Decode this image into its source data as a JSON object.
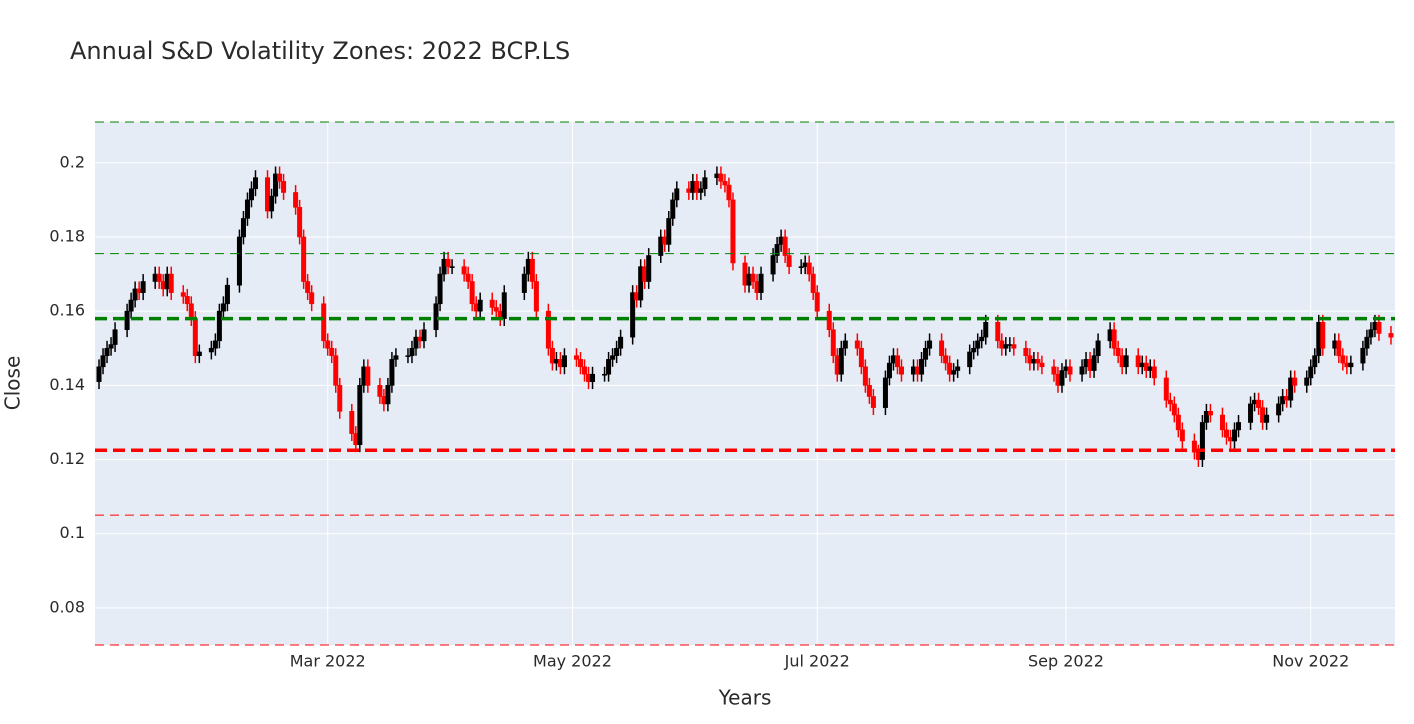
{
  "chart_data": {
    "type": "candlestick",
    "title": "Annual S&D Volatility Zones: 2022 BCP.LS",
    "x_label": "Years",
    "y_label": "Close",
    "increasing_color": "#000000",
    "decreasing_color": "#ff0000",
    "grid": true,
    "xlim": [
      "2022-01-02",
      "2022-11-22"
    ],
    "xticks": [
      {
        "value": "2022-03-01",
        "label": "Mar 2022"
      },
      {
        "value": "2022-05-01",
        "label": "May 2022"
      },
      {
        "value": "2022-07-01",
        "label": "Jul 2022"
      },
      {
        "value": "2022-09-01",
        "label": "Sep 2022"
      },
      {
        "value": "2022-11-01",
        "label": "Nov 2022"
      }
    ],
    "ylim": [
      0.07,
      0.211
    ],
    "yticks": [
      0.08,
      0.1,
      0.12,
      0.14,
      0.16,
      0.18,
      0.2
    ],
    "levels": [
      {
        "value": 0.211,
        "color": "#008000",
        "width": 1
      },
      {
        "value": 0.1755,
        "color": "#008000",
        "width": 1
      },
      {
        "value": 0.158,
        "color": "#008000",
        "width": 3.5
      },
      {
        "value": 0.1225,
        "color": "#ff0000",
        "width": 3.5
      },
      {
        "value": 0.105,
        "color": "#ff0000",
        "width": 1
      },
      {
        "value": 0.07,
        "color": "#ff0000",
        "width": 1
      }
    ],
    "x": [
      "2022-01-03",
      "2022-01-04",
      "2022-01-05",
      "2022-01-06",
      "2022-01-07",
      "2022-01-10",
      "2022-01-11",
      "2022-01-12",
      "2022-01-13",
      "2022-01-14",
      "2022-01-17",
      "2022-01-18",
      "2022-01-19",
      "2022-01-20",
      "2022-01-21",
      "2022-01-24",
      "2022-01-25",
      "2022-01-26",
      "2022-01-27",
      "2022-01-28",
      "2022-01-31",
      "2022-02-01",
      "2022-02-02",
      "2022-02-03",
      "2022-02-04",
      "2022-02-07",
      "2022-02-08",
      "2022-02-09",
      "2022-02-10",
      "2022-02-11",
      "2022-02-14",
      "2022-02-15",
      "2022-02-16",
      "2022-02-17",
      "2022-02-18",
      "2022-02-21",
      "2022-02-22",
      "2022-02-23",
      "2022-02-24",
      "2022-02-25",
      "2022-02-28",
      "2022-03-01",
      "2022-03-02",
      "2022-03-03",
      "2022-03-04",
      "2022-03-07",
      "2022-03-08",
      "2022-03-09",
      "2022-03-10",
      "2022-03-11",
      "2022-03-14",
      "2022-03-15",
      "2022-03-16",
      "2022-03-17",
      "2022-03-18",
      "2022-03-21",
      "2022-03-22",
      "2022-03-23",
      "2022-03-24",
      "2022-03-25",
      "2022-03-28",
      "2022-03-29",
      "2022-03-30",
      "2022-03-31",
      "2022-04-01",
      "2022-04-04",
      "2022-04-05",
      "2022-04-06",
      "2022-04-07",
      "2022-04-08",
      "2022-04-11",
      "2022-04-12",
      "2022-04-13",
      "2022-04-14",
      "2022-04-19",
      "2022-04-20",
      "2022-04-21",
      "2022-04-22",
      "2022-04-25",
      "2022-04-26",
      "2022-04-27",
      "2022-04-28",
      "2022-04-29",
      "2022-05-02",
      "2022-05-03",
      "2022-05-04",
      "2022-05-05",
      "2022-05-06",
      "2022-05-09",
      "2022-05-10",
      "2022-05-11",
      "2022-05-12",
      "2022-05-13",
      "2022-05-16",
      "2022-05-17",
      "2022-05-18",
      "2022-05-19",
      "2022-05-20",
      "2022-05-23",
      "2022-05-24",
      "2022-05-25",
      "2022-05-26",
      "2022-05-27",
      "2022-05-30",
      "2022-05-31",
      "2022-06-01",
      "2022-06-02",
      "2022-06-03",
      "2022-06-06",
      "2022-06-07",
      "2022-06-08",
      "2022-06-09",
      "2022-06-10",
      "2022-06-13",
      "2022-06-14",
      "2022-06-15",
      "2022-06-16",
      "2022-06-17",
      "2022-06-20",
      "2022-06-21",
      "2022-06-22",
      "2022-06-23",
      "2022-06-24",
      "2022-06-27",
      "2022-06-28",
      "2022-06-29",
      "2022-06-30",
      "2022-07-01",
      "2022-07-04",
      "2022-07-05",
      "2022-07-06",
      "2022-07-07",
      "2022-07-08",
      "2022-07-11",
      "2022-07-12",
      "2022-07-13",
      "2022-07-14",
      "2022-07-15",
      "2022-07-18",
      "2022-07-19",
      "2022-07-20",
      "2022-07-21",
      "2022-07-22",
      "2022-07-25",
      "2022-07-26",
      "2022-07-27",
      "2022-07-28",
      "2022-07-29",
      "2022-08-01",
      "2022-08-02",
      "2022-08-03",
      "2022-08-04",
      "2022-08-05",
      "2022-08-08",
      "2022-08-09",
      "2022-08-10",
      "2022-08-11",
      "2022-08-12",
      "2022-08-15",
      "2022-08-16",
      "2022-08-17",
      "2022-08-18",
      "2022-08-19",
      "2022-08-22",
      "2022-08-23",
      "2022-08-24",
      "2022-08-25",
      "2022-08-26",
      "2022-08-29",
      "2022-08-30",
      "2022-08-31",
      "2022-09-01",
      "2022-09-02",
      "2022-09-05",
      "2022-09-06",
      "2022-09-07",
      "2022-09-08",
      "2022-09-09",
      "2022-09-12",
      "2022-09-13",
      "2022-09-14",
      "2022-09-15",
      "2022-09-16",
      "2022-09-19",
      "2022-09-20",
      "2022-09-21",
      "2022-09-22",
      "2022-09-23",
      "2022-09-26",
      "2022-09-27",
      "2022-09-28",
      "2022-09-29",
      "2022-09-30",
      "2022-10-03",
      "2022-10-04",
      "2022-10-05",
      "2022-10-06",
      "2022-10-07",
      "2022-10-10",
      "2022-10-11",
      "2022-10-12",
      "2022-10-13",
      "2022-10-14",
      "2022-10-17",
      "2022-10-18",
      "2022-10-19",
      "2022-10-20",
      "2022-10-21",
      "2022-10-24",
      "2022-10-25",
      "2022-10-26",
      "2022-10-27",
      "2022-10-28",
      "2022-10-31",
      "2022-11-01",
      "2022-11-02",
      "2022-11-03",
      "2022-11-04",
      "2022-11-07",
      "2022-11-08",
      "2022-11-09",
      "2022-11-10",
      "2022-11-11",
      "2022-11-14",
      "2022-11-15",
      "2022-11-16",
      "2022-11-17",
      "2022-11-18",
      "2022-11-21"
    ],
    "open": [
      0.141,
      0.145,
      0.148,
      0.15,
      0.151,
      0.155,
      0.16,
      0.163,
      0.166,
      0.165,
      0.168,
      0.17,
      0.168,
      0.166,
      0.17,
      0.165,
      0.164,
      0.162,
      0.158,
      0.148,
      0.149,
      0.15,
      0.152,
      0.16,
      0.162,
      0.167,
      0.18,
      0.185,
      0.19,
      0.193,
      0.196,
      0.187,
      0.191,
      0.197,
      0.195,
      0.192,
      0.188,
      0.18,
      0.168,
      0.165,
      0.162,
      0.152,
      0.15,
      0.148,
      0.14,
      0.133,
      0.127,
      0.124,
      0.14,
      0.145,
      0.14,
      0.137,
      0.135,
      0.14,
      0.147,
      0.148,
      0.148,
      0.15,
      0.153,
      0.152,
      0.155,
      0.162,
      0.17,
      0.174,
      0.172,
      0.172,
      0.17,
      0.168,
      0.162,
      0.16,
      0.163,
      0.161,
      0.16,
      0.158,
      0.165,
      0.17,
      0.174,
      0.168,
      0.16,
      0.15,
      0.146,
      0.147,
      0.145,
      0.148,
      0.147,
      0.145,
      0.143,
      0.141,
      0.143,
      0.143,
      0.147,
      0.148,
      0.15,
      0.153,
      0.165,
      0.163,
      0.172,
      0.168,
      0.175,
      0.18,
      0.178,
      0.185,
      0.19,
      0.193,
      0.192,
      0.195,
      0.192,
      0.193,
      0.196,
      0.197,
      0.195,
      0.194,
      0.19,
      0.173,
      0.167,
      0.17,
      0.168,
      0.165,
      0.17,
      0.175,
      0.178,
      0.18,
      0.175,
      0.172,
      0.172,
      0.173,
      0.17,
      0.165,
      0.16,
      0.155,
      0.148,
      0.143,
      0.15,
      0.152,
      0.15,
      0.145,
      0.14,
      0.137,
      0.134,
      0.142,
      0.146,
      0.148,
      0.145,
      0.143,
      0.145,
      0.143,
      0.147,
      0.15,
      0.152,
      0.148,
      0.146,
      0.143,
      0.144,
      0.145,
      0.149,
      0.15,
      0.152,
      0.153,
      0.157,
      0.152,
      0.15,
      0.151,
      0.151,
      0.15,
      0.148,
      0.146,
      0.147,
      0.146,
      0.145,
      0.143,
      0.14,
      0.144,
      0.145,
      0.143,
      0.145,
      0.147,
      0.144,
      0.148,
      0.152,
      0.155,
      0.15,
      0.148,
      0.145,
      0.148,
      0.145,
      0.146,
      0.144,
      0.145,
      0.142,
      0.136,
      0.135,
      0.132,
      0.128,
      0.125,
      0.122,
      0.12,
      0.13,
      0.133,
      0.132,
      0.128,
      0.126,
      0.125,
      0.128,
      0.13,
      0.135,
      0.136,
      0.134,
      0.13,
      0.132,
      0.135,
      0.137,
      0.136,
      0.142,
      0.14,
      0.142,
      0.145,
      0.148,
      0.157,
      0.15,
      0.152,
      0.148,
      0.146,
      0.145,
      0.146,
      0.15,
      0.153,
      0.155,
      0.157,
      0.154
    ],
    "high": [
      0.147,
      0.15,
      0.152,
      0.153,
      0.157,
      0.162,
      0.165,
      0.168,
      0.168,
      0.17,
      0.172,
      0.172,
      0.17,
      0.172,
      0.172,
      0.167,
      0.166,
      0.164,
      0.16,
      0.151,
      0.152,
      0.154,
      0.162,
      0.164,
      0.169,
      0.182,
      0.187,
      0.192,
      0.195,
      0.198,
      0.198,
      0.193,
      0.199,
      0.199,
      0.197,
      0.194,
      0.19,
      0.182,
      0.17,
      0.167,
      0.164,
      0.154,
      0.152,
      0.15,
      0.142,
      0.135,
      0.129,
      0.142,
      0.147,
      0.147,
      0.142,
      0.139,
      0.142,
      0.149,
      0.15,
      0.15,
      0.152,
      0.155,
      0.155,
      0.157,
      0.164,
      0.172,
      0.176,
      0.176,
      0.174,
      0.174,
      0.172,
      0.17,
      0.164,
      0.165,
      0.165,
      0.163,
      0.162,
      0.167,
      0.172,
      0.176,
      0.176,
      0.17,
      0.162,
      0.152,
      0.149,
      0.149,
      0.15,
      0.15,
      0.149,
      0.147,
      0.145,
      0.145,
      0.145,
      0.149,
      0.15,
      0.152,
      0.155,
      0.167,
      0.167,
      0.174,
      0.174,
      0.177,
      0.182,
      0.182,
      0.187,
      0.192,
      0.195,
      0.195,
      0.197,
      0.197,
      0.195,
      0.198,
      0.199,
      0.199,
      0.197,
      0.196,
      0.192,
      0.175,
      0.172,
      0.172,
      0.17,
      0.172,
      0.177,
      0.18,
      0.182,
      0.182,
      0.177,
      0.174,
      0.175,
      0.175,
      0.172,
      0.167,
      0.162,
      0.157,
      0.15,
      0.152,
      0.154,
      0.154,
      0.152,
      0.147,
      0.142,
      0.139,
      0.144,
      0.148,
      0.15,
      0.15,
      0.147,
      0.147,
      0.147,
      0.149,
      0.152,
      0.154,
      0.154,
      0.15,
      0.148,
      0.146,
      0.147,
      0.151,
      0.152,
      0.154,
      0.155,
      0.159,
      0.159,
      0.154,
      0.153,
      0.153,
      0.153,
      0.152,
      0.15,
      0.149,
      0.149,
      0.148,
      0.147,
      0.145,
      0.146,
      0.147,
      0.147,
      0.147,
      0.149,
      0.149,
      0.15,
      0.154,
      0.157,
      0.157,
      0.152,
      0.15,
      0.15,
      0.15,
      0.148,
      0.148,
      0.147,
      0.147,
      0.144,
      0.138,
      0.137,
      0.134,
      0.13,
      0.127,
      0.124,
      0.132,
      0.135,
      0.135,
      0.134,
      0.13,
      0.128,
      0.13,
      0.132,
      0.137,
      0.138,
      0.138,
      0.136,
      0.134,
      0.137,
      0.139,
      0.139,
      0.144,
      0.144,
      0.144,
      0.147,
      0.15,
      0.159,
      0.159,
      0.154,
      0.154,
      0.15,
      0.148,
      0.148,
      0.152,
      0.155,
      0.157,
      0.159,
      0.159,
      0.156
    ],
    "low": [
      0.139,
      0.143,
      0.146,
      0.148,
      0.149,
      0.153,
      0.158,
      0.161,
      0.163,
      0.163,
      0.166,
      0.166,
      0.164,
      0.164,
      0.163,
      0.162,
      0.16,
      0.156,
      0.146,
      0.146,
      0.147,
      0.148,
      0.15,
      0.158,
      0.16,
      0.165,
      0.178,
      0.183,
      0.188,
      0.191,
      0.185,
      0.185,
      0.189,
      0.193,
      0.19,
      0.186,
      0.178,
      0.166,
      0.163,
      0.16,
      0.15,
      0.148,
      0.146,
      0.138,
      0.131,
      0.125,
      0.122,
      0.122,
      0.138,
      0.138,
      0.135,
      0.133,
      0.133,
      0.138,
      0.145,
      0.146,
      0.146,
      0.148,
      0.15,
      0.15,
      0.153,
      0.16,
      0.168,
      0.17,
      0.17,
      0.168,
      0.166,
      0.16,
      0.158,
      0.158,
      0.159,
      0.158,
      0.156,
      0.156,
      0.163,
      0.168,
      0.166,
      0.158,
      0.148,
      0.144,
      0.144,
      0.143,
      0.143,
      0.145,
      0.143,
      0.141,
      0.139,
      0.139,
      0.141,
      0.141,
      0.145,
      0.146,
      0.148,
      0.151,
      0.161,
      0.161,
      0.166,
      0.166,
      0.173,
      0.176,
      0.176,
      0.183,
      0.188,
      0.19,
      0.19,
      0.19,
      0.19,
      0.191,
      0.194,
      0.193,
      0.192,
      0.188,
      0.171,
      0.165,
      0.165,
      0.166,
      0.163,
      0.163,
      0.168,
      0.173,
      0.176,
      0.173,
      0.17,
      0.17,
      0.17,
      0.168,
      0.163,
      0.158,
      0.153,
      0.146,
      0.141,
      0.141,
      0.148,
      0.148,
      0.143,
      0.138,
      0.135,
      0.132,
      0.132,
      0.14,
      0.144,
      0.143,
      0.141,
      0.141,
      0.141,
      0.141,
      0.145,
      0.148,
      0.146,
      0.144,
      0.141,
      0.141,
      0.142,
      0.143,
      0.147,
      0.148,
      0.15,
      0.151,
      0.15,
      0.148,
      0.148,
      0.149,
      0.148,
      0.146,
      0.144,
      0.144,
      0.144,
      0.143,
      0.141,
      0.138,
      0.138,
      0.142,
      0.141,
      0.141,
      0.143,
      0.142,
      0.142,
      0.146,
      0.15,
      0.148,
      0.146,
      0.143,
      0.143,
      0.143,
      0.143,
      0.142,
      0.142,
      0.14,
      0.134,
      0.133,
      0.13,
      0.126,
      0.123,
      0.12,
      0.118,
      0.118,
      0.128,
      0.13,
      0.126,
      0.124,
      0.123,
      0.123,
      0.126,
      0.128,
      0.133,
      0.132,
      0.128,
      0.128,
      0.13,
      0.133,
      0.134,
      0.134,
      0.138,
      0.138,
      0.14,
      0.143,
      0.146,
      0.148,
      0.148,
      0.146,
      0.144,
      0.143,
      0.143,
      0.144,
      0.148,
      0.151,
      0.153,
      0.152,
      0.151
    ],
    "close": [
      0.145,
      0.148,
      0.15,
      0.151,
      0.155,
      0.16,
      0.163,
      0.166,
      0.165,
      0.168,
      0.17,
      0.168,
      0.166,
      0.17,
      0.165,
      0.164,
      0.162,
      0.158,
      0.148,
      0.149,
      0.15,
      0.152,
      0.16,
      0.162,
      0.167,
      0.18,
      0.185,
      0.19,
      0.193,
      0.196,
      0.187,
      0.191,
      0.197,
      0.195,
      0.192,
      0.188,
      0.18,
      0.168,
      0.165,
      0.162,
      0.152,
      0.15,
      0.148,
      0.14,
      0.133,
      0.127,
      0.124,
      0.14,
      0.145,
      0.14,
      0.137,
      0.135,
      0.14,
      0.147,
      0.148,
      0.148,
      0.15,
      0.153,
      0.152,
      0.155,
      0.162,
      0.17,
      0.174,
      0.172,
      0.172,
      0.17,
      0.168,
      0.162,
      0.16,
      0.163,
      0.161,
      0.16,
      0.158,
      0.165,
      0.17,
      0.174,
      0.168,
      0.16,
      0.15,
      0.146,
      0.147,
      0.145,
      0.148,
      0.147,
      0.145,
      0.143,
      0.141,
      0.143,
      0.143,
      0.147,
      0.148,
      0.15,
      0.153,
      0.165,
      0.163,
      0.172,
      0.168,
      0.175,
      0.18,
      0.178,
      0.185,
      0.19,
      0.193,
      0.192,
      0.195,
      0.192,
      0.193,
      0.196,
      0.197,
      0.195,
      0.194,
      0.19,
      0.173,
      0.167,
      0.17,
      0.168,
      0.165,
      0.17,
      0.175,
      0.178,
      0.18,
      0.175,
      0.172,
      0.172,
      0.173,
      0.17,
      0.165,
      0.16,
      0.155,
      0.148,
      0.143,
      0.15,
      0.152,
      0.15,
      0.145,
      0.14,
      0.137,
      0.134,
      0.142,
      0.146,
      0.148,
      0.145,
      0.143,
      0.145,
      0.143,
      0.147,
      0.15,
      0.152,
      0.148,
      0.146,
      0.143,
      0.144,
      0.145,
      0.149,
      0.15,
      0.152,
      0.153,
      0.157,
      0.152,
      0.15,
      0.151,
      0.151,
      0.15,
      0.148,
      0.146,
      0.147,
      0.146,
      0.145,
      0.143,
      0.14,
      0.144,
      0.145,
      0.143,
      0.145,
      0.147,
      0.144,
      0.148,
      0.152,
      0.155,
      0.15,
      0.148,
      0.145,
      0.148,
      0.145,
      0.146,
      0.144,
      0.145,
      0.142,
      0.136,
      0.135,
      0.132,
      0.128,
      0.125,
      0.122,
      0.12,
      0.13,
      0.133,
      0.132,
      0.128,
      0.126,
      0.125,
      0.128,
      0.13,
      0.135,
      0.136,
      0.134,
      0.13,
      0.132,
      0.135,
      0.137,
      0.136,
      0.142,
      0.14,
      0.142,
      0.145,
      0.148,
      0.157,
      0.15,
      0.152,
      0.148,
      0.146,
      0.145,
      0.146,
      0.15,
      0.153,
      0.155,
      0.157,
      0.154,
      0.153
    ]
  }
}
